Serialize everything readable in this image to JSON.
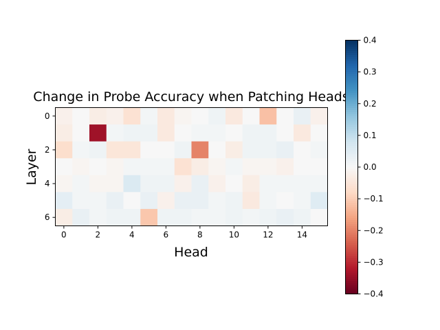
{
  "chart_data": {
    "type": "heatmap",
    "title": "Change in Probe Accuracy when Patching Heads",
    "xlabel": "Head",
    "ylabel": "Layer",
    "x_ticks": [
      "0",
      "2",
      "4",
      "6",
      "8",
      "10",
      "12",
      "14"
    ],
    "y_ticks": [
      "0",
      "2",
      "4",
      "6"
    ],
    "rows": 7,
    "cols": 16,
    "colormap": "RdBu",
    "vmin": -0.4,
    "vmax": 0.4,
    "colorbar_ticks": [
      "0.4",
      "0.3",
      "0.2",
      "0.1",
      "0.0",
      "−0.1",
      "−0.2",
      "−0.3",
      "−0.4"
    ],
    "values": [
      [
        -0.02,
        0.0,
        -0.03,
        -0.02,
        -0.06,
        0.01,
        -0.04,
        -0.01,
        0.0,
        0.02,
        -0.04,
        0.0,
        -0.12,
        0.0,
        0.03,
        -0.02
      ],
      [
        -0.03,
        0.0,
        -0.34,
        0.01,
        0.02,
        0.02,
        -0.04,
        0.0,
        0.01,
        0.01,
        0.0,
        0.02,
        0.02,
        0.0,
        -0.04,
        0.0
      ],
      [
        -0.07,
        0.01,
        0.02,
        -0.05,
        -0.05,
        0.0,
        0.0,
        0.02,
        -0.2,
        0.0,
        -0.03,
        0.02,
        0.02,
        0.03,
        0.0,
        0.01
      ],
      [
        0.0,
        -0.01,
        0.0,
        -0.01,
        0.01,
        0.01,
        0.01,
        -0.06,
        -0.03,
        -0.01,
        0.01,
        -0.01,
        -0.01,
        -0.02,
        0.0,
        0.0
      ],
      [
        -0.01,
        0.01,
        -0.01,
        -0.01,
        0.06,
        0.02,
        0.02,
        -0.02,
        0.03,
        -0.02,
        0.0,
        -0.03,
        0.01,
        0.01,
        0.01,
        0.01
      ],
      [
        0.04,
        0.01,
        0.01,
        0.03,
        0.0,
        0.03,
        -0.02,
        0.03,
        0.03,
        0.01,
        0.02,
        -0.04,
        0.01,
        0.0,
        0.01,
        0.05
      ],
      [
        -0.03,
        0.03,
        0.01,
        0.02,
        0.02,
        -0.11,
        0.02,
        0.02,
        0.01,
        0.01,
        0.02,
        0.01,
        0.02,
        0.03,
        0.02,
        0.0
      ]
    ]
  }
}
